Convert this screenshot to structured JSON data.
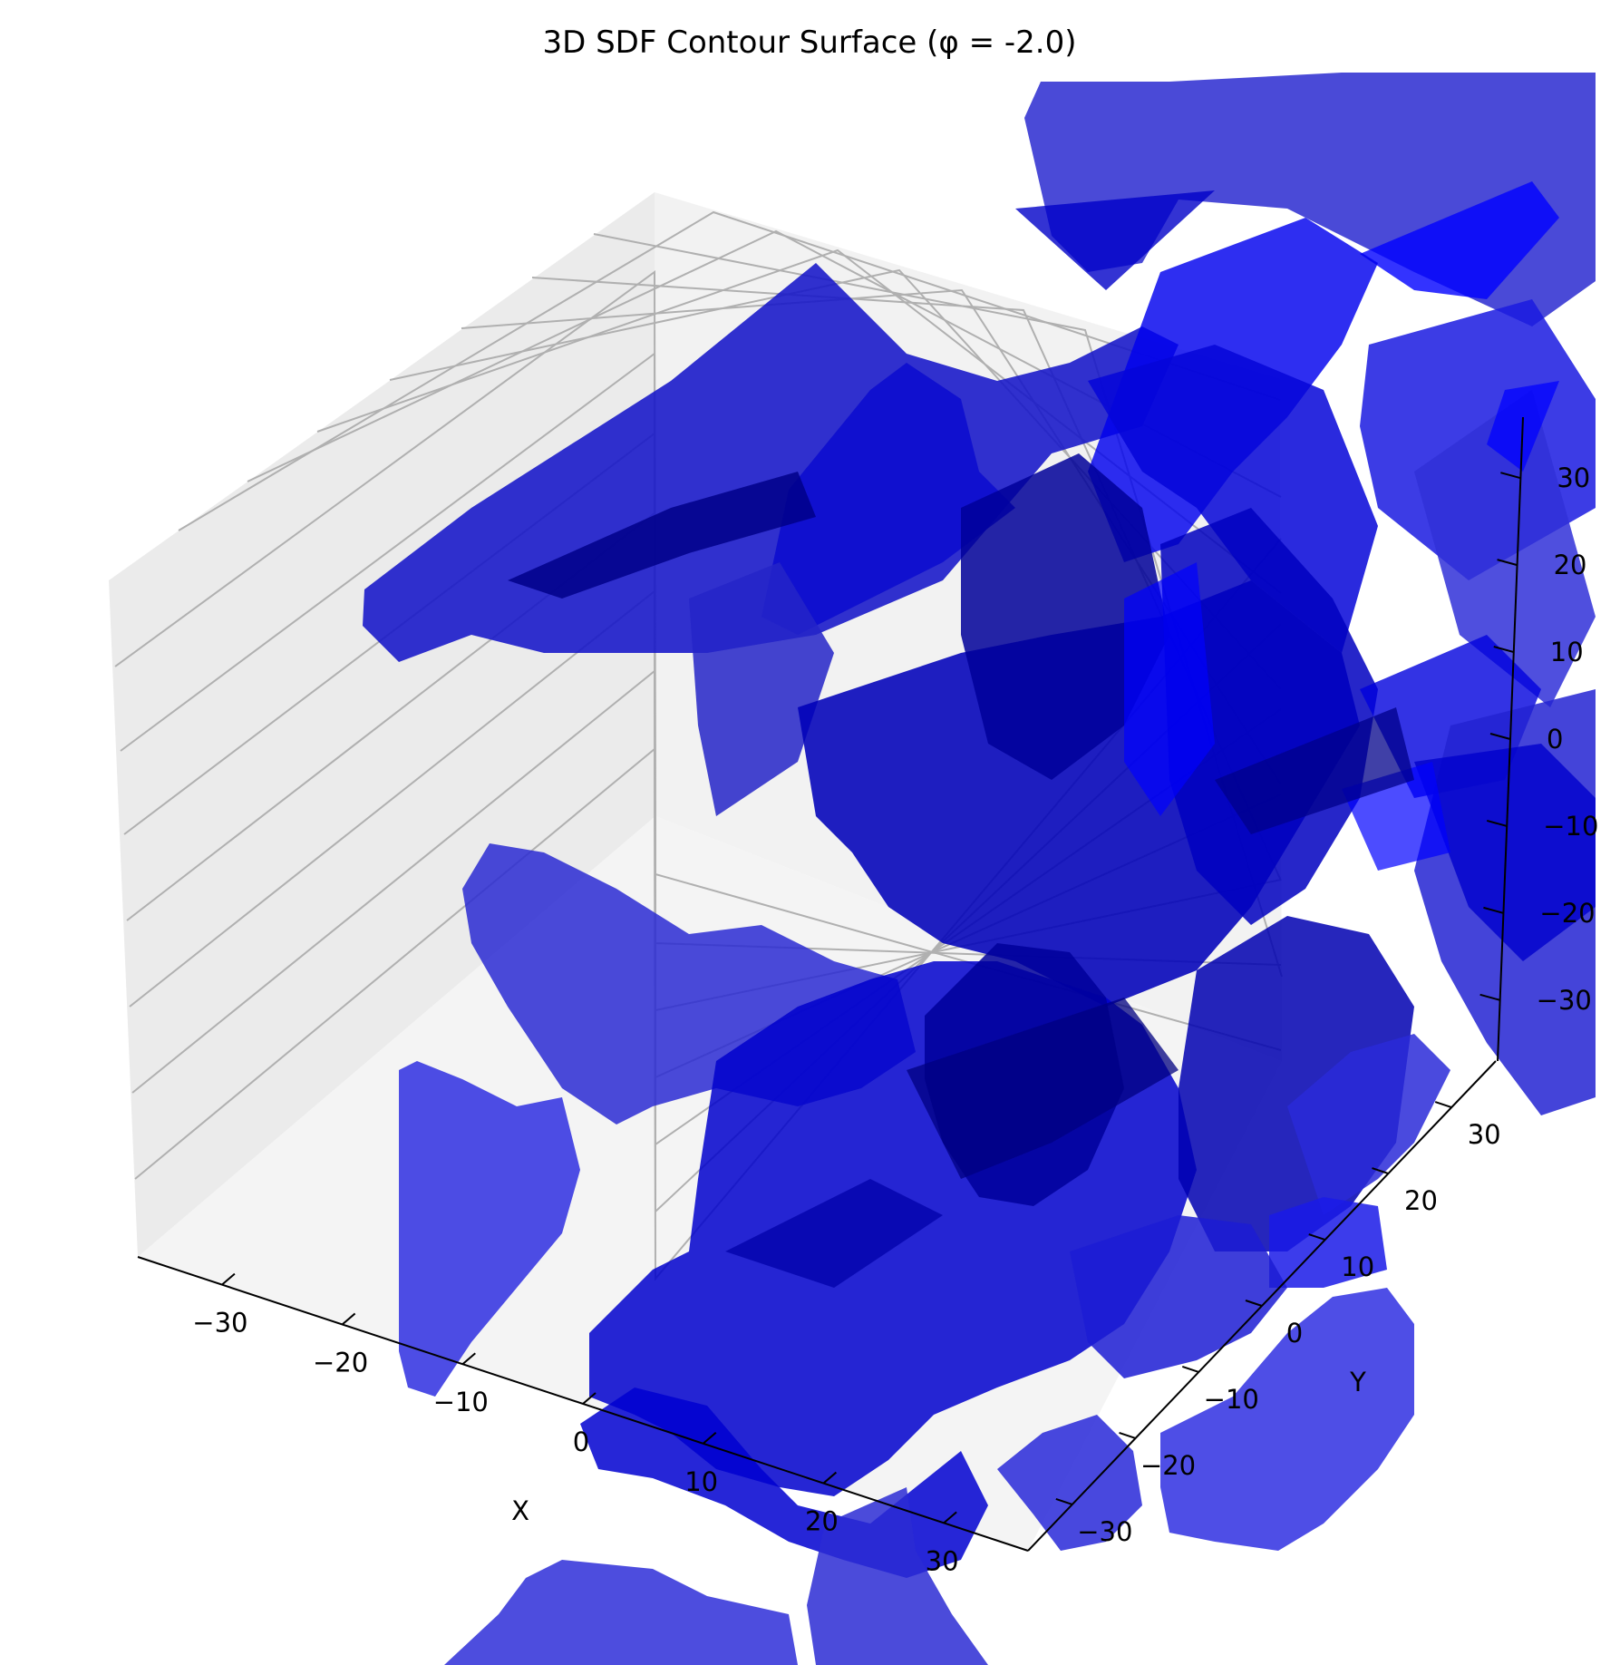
{
  "chart_data": {
    "type": "3d-surface",
    "title": "3D SDF Contour Surface (φ = -2.0)",
    "xlabel": "X",
    "ylabel": "Y",
    "zlabel": "",
    "x_ticks": [
      "−30",
      "−20",
      "−10",
      "0",
      "10",
      "20",
      "30"
    ],
    "y_ticks": [
      "−30",
      "−20",
      "−10",
      "0",
      "10",
      "20",
      "30"
    ],
    "z_ticks": [
      "−30",
      "−20",
      "−10",
      "0",
      "10",
      "20",
      "30"
    ],
    "xlim": [
      -37,
      37
    ],
    "ylim": [
      -37,
      37
    ],
    "zlim": [
      -37,
      37
    ],
    "grid": true,
    "level": -2.0,
    "surface_color": "#0000ff",
    "surface_alpha": 0.75
  }
}
